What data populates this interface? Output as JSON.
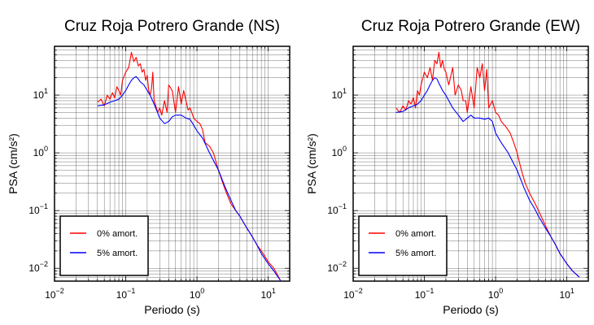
{
  "chart_data": [
    {
      "type": "line",
      "title": "Cruz Roja Potrero Grande (NS)",
      "xlabel": "Periodo (s)",
      "ylabel": "PSA (cm/s²)",
      "x_scale": "log",
      "y_scale": "log",
      "xlim": [
        0.01,
        20
      ],
      "ylim": [
        0.006,
        70
      ],
      "xticks": [
        0.01,
        0.1,
        1,
        10
      ],
      "yticks": [
        0.01,
        0.1,
        1,
        10
      ],
      "grid": true,
      "legend_position": "bottom-left",
      "series": [
        {
          "name": "0% amort.",
          "color": "#ff0000",
          "x": [
            0.04,
            0.045,
            0.05,
            0.055,
            0.06,
            0.065,
            0.07,
            0.075,
            0.08,
            0.085,
            0.09,
            0.1,
            0.11,
            0.12,
            0.13,
            0.14,
            0.15,
            0.16,
            0.17,
            0.18,
            0.19,
            0.2,
            0.21,
            0.22,
            0.23,
            0.24,
            0.25,
            0.27,
            0.28,
            0.3,
            0.32,
            0.35,
            0.38,
            0.4,
            0.45,
            0.5,
            0.55,
            0.6,
            0.65,
            0.7,
            0.75,
            0.8,
            0.9,
            1.0,
            1.1,
            1.2,
            1.3,
            1.5,
            1.7,
            2.0,
            2.3,
            2.6,
            3.0,
            3.5,
            4,
            5,
            6,
            7,
            8,
            10,
            12,
            15
          ],
          "values": [
            7.5,
            8.5,
            6.5,
            10,
            8.5,
            11,
            9,
            14,
            12,
            10,
            18,
            25,
            30,
            55,
            38,
            45,
            32,
            35,
            25,
            28,
            18,
            22,
            12,
            10,
            13,
            25,
            8,
            6,
            5,
            6,
            4.5,
            8,
            5,
            15,
            12,
            5,
            14,
            7,
            12,
            8,
            5.5,
            6,
            4,
            3.5,
            3.2,
            2.5,
            1.5,
            1.3,
            1.0,
            0.5,
            0.3,
            0.2,
            0.13,
            0.1,
            0.08,
            0.05,
            0.035,
            0.025,
            0.02,
            0.013,
            0.01,
            0.006
          ]
        },
        {
          "name": "5% amort.",
          "color": "#0000ff",
          "x": [
            0.04,
            0.05,
            0.06,
            0.07,
            0.08,
            0.09,
            0.1,
            0.11,
            0.12,
            0.13,
            0.14,
            0.15,
            0.16,
            0.18,
            0.2,
            0.22,
            0.25,
            0.3,
            0.35,
            0.4,
            0.45,
            0.5,
            0.6,
            0.7,
            0.8,
            0.9,
            1.0,
            1.2,
            1.5,
            2.0,
            2.5,
            3.0,
            3.5,
            4,
            5,
            6,
            7,
            8,
            10,
            12,
            15
          ],
          "values": [
            6.5,
            6.8,
            7.5,
            8,
            8.5,
            10,
            12,
            15,
            18,
            20,
            21,
            19,
            17,
            15,
            12,
            10,
            7,
            4,
            3.2,
            3.5,
            4.2,
            4.5,
            4.5,
            4,
            3.8,
            3,
            2.4,
            1.8,
            1.0,
            0.5,
            0.25,
            0.15,
            0.1,
            0.08,
            0.05,
            0.035,
            0.025,
            0.018,
            0.012,
            0.009,
            0.006
          ]
        }
      ]
    },
    {
      "type": "line",
      "title": "Cruz Roja Potrero Grande (EW)",
      "xlabel": "Periodo (s)",
      "ylabel": "PSA (cm/s²)",
      "x_scale": "log",
      "y_scale": "log",
      "xlim": [
        0.01,
        20
      ],
      "ylim": [
        0.006,
        70
      ],
      "xticks": [
        0.01,
        0.1,
        1,
        10
      ],
      "yticks": [
        0.01,
        0.1,
        1,
        10
      ],
      "grid": true,
      "legend_position": "bottom-left",
      "series": [
        {
          "name": "0% amort.",
          "color": "#ff0000",
          "x": [
            0.04,
            0.045,
            0.05,
            0.055,
            0.06,
            0.065,
            0.07,
            0.075,
            0.08,
            0.085,
            0.09,
            0.1,
            0.11,
            0.12,
            0.13,
            0.14,
            0.15,
            0.16,
            0.17,
            0.18,
            0.19,
            0.2,
            0.22,
            0.25,
            0.27,
            0.3,
            0.33,
            0.35,
            0.38,
            0.4,
            0.45,
            0.5,
            0.55,
            0.6,
            0.65,
            0.7,
            0.75,
            0.8,
            0.9,
            1.0,
            1.1,
            1.2,
            1.4,
            1.6,
            1.8,
            2.0,
            2.3,
            2.6,
            3.0,
            3.5,
            4,
            5,
            6,
            7,
            8,
            10,
            12,
            15
          ],
          "values": [
            6,
            5,
            6.5,
            5.5,
            8,
            7,
            9,
            6,
            12,
            10,
            15,
            25,
            20,
            30,
            18,
            40,
            35,
            55,
            30,
            40,
            28,
            25,
            15,
            30,
            10,
            15,
            12,
            8,
            8,
            5,
            14,
            6,
            30,
            20,
            35,
            12,
            28,
            6,
            8,
            5,
            4.5,
            3.5,
            2.8,
            2.2,
            1.5,
            1.0,
            0.5,
            0.3,
            0.2,
            0.14,
            0.1,
            0.055,
            0.035,
            0.025,
            0.018,
            0.012,
            0.009,
            0.007
          ]
        },
        {
          "name": "5% amort.",
          "color": "#0000ff",
          "x": [
            0.04,
            0.05,
            0.06,
            0.07,
            0.08,
            0.09,
            0.1,
            0.11,
            0.12,
            0.13,
            0.14,
            0.15,
            0.16,
            0.18,
            0.2,
            0.22,
            0.25,
            0.3,
            0.35,
            0.4,
            0.45,
            0.5,
            0.6,
            0.7,
            0.8,
            0.9,
            1.0,
            1.2,
            1.5,
            2.0,
            2.5,
            3.0,
            3.5,
            4,
            5,
            6,
            7,
            8,
            10,
            12,
            15
          ],
          "values": [
            5,
            5.2,
            6,
            6.5,
            7,
            8,
            10,
            12,
            15,
            18,
            20,
            19,
            16,
            12,
            10,
            8,
            6,
            4.5,
            3.5,
            4,
            4.5,
            4,
            4,
            3.8,
            4,
            3.5,
            2.2,
            1.5,
            1.0,
            0.5,
            0.25,
            0.15,
            0.11,
            0.08,
            0.05,
            0.035,
            0.025,
            0.018,
            0.012,
            0.009,
            0.007
          ]
        }
      ]
    }
  ]
}
